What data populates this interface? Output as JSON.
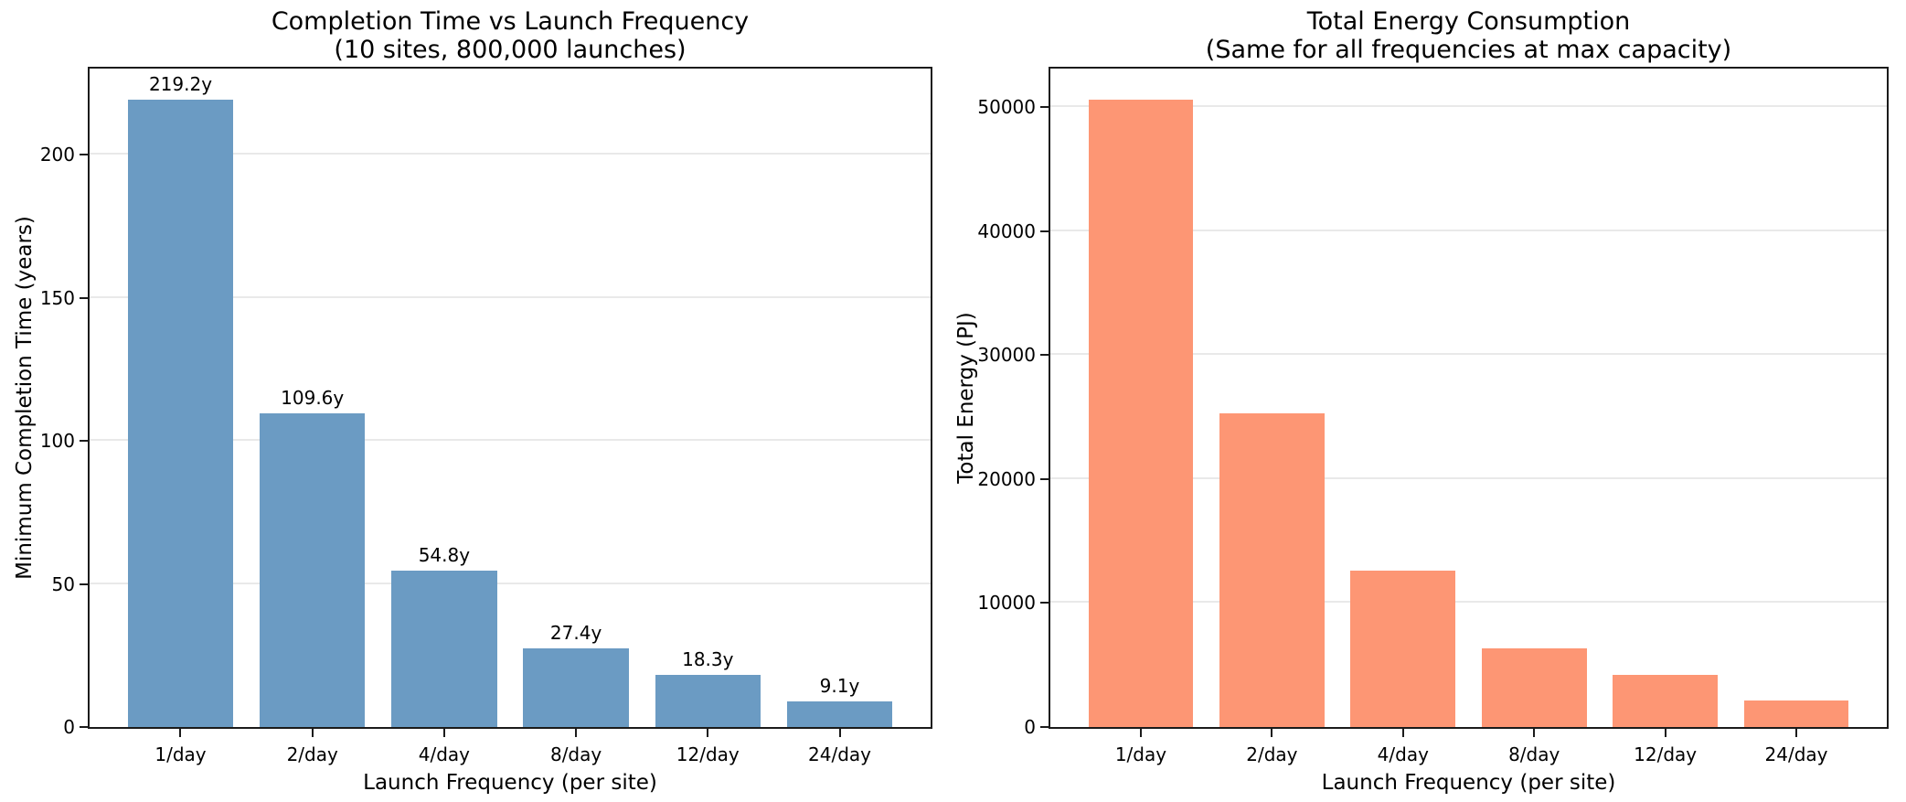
{
  "figure": {
    "background": "#ffffff",
    "text_color": "#000000",
    "spine_color": "#1b1b1b",
    "grid_color": "#e9e9e9"
  },
  "chart_data": [
    {
      "type": "bar",
      "title": "Completion Time vs Launch Frequency",
      "subtitle": "(10 sites, 800,000 launches)",
      "xlabel": "Launch Frequency (per site)",
      "ylabel": "Minimum Completion Time (years)",
      "categories": [
        "1/day",
        "2/day",
        "4/day",
        "8/day",
        "12/day",
        "24/day"
      ],
      "values": [
        219.2,
        109.6,
        54.8,
        27.4,
        18.3,
        9.1
      ],
      "bar_labels": [
        "219.2y",
        "109.6y",
        "54.8y",
        "27.4y",
        "18.3y",
        "9.1y"
      ],
      "bar_color": "#6b9bc3",
      "yticks": [
        0,
        50,
        100,
        150,
        200
      ],
      "ytick_labels": [
        "0",
        "50",
        "100",
        "150",
        "200"
      ],
      "ylim": [
        0,
        230.2
      ],
      "grid": "horizontal",
      "legend": "none"
    },
    {
      "type": "bar",
      "title": "Total Energy Consumption",
      "subtitle": "(Same for all frequencies at max capacity)",
      "xlabel": "Launch Frequency (per site)",
      "ylabel": "Total Energy (PJ)",
      "categories": [
        "1/day",
        "2/day",
        "4/day",
        "8/day",
        "12/day",
        "24/day"
      ],
      "values": [
        50600,
        25300,
        12650,
        6325,
        4217,
        2108
      ],
      "bar_labels": [],
      "bar_color": "#fd9674",
      "yticks": [
        0,
        10000,
        20000,
        30000,
        40000,
        50000
      ],
      "ytick_labels": [
        "0",
        "10000",
        "20000",
        "30000",
        "40000",
        "50000"
      ],
      "ylim": [
        0,
        53130
      ],
      "grid": "horizontal",
      "legend": "none"
    }
  ]
}
